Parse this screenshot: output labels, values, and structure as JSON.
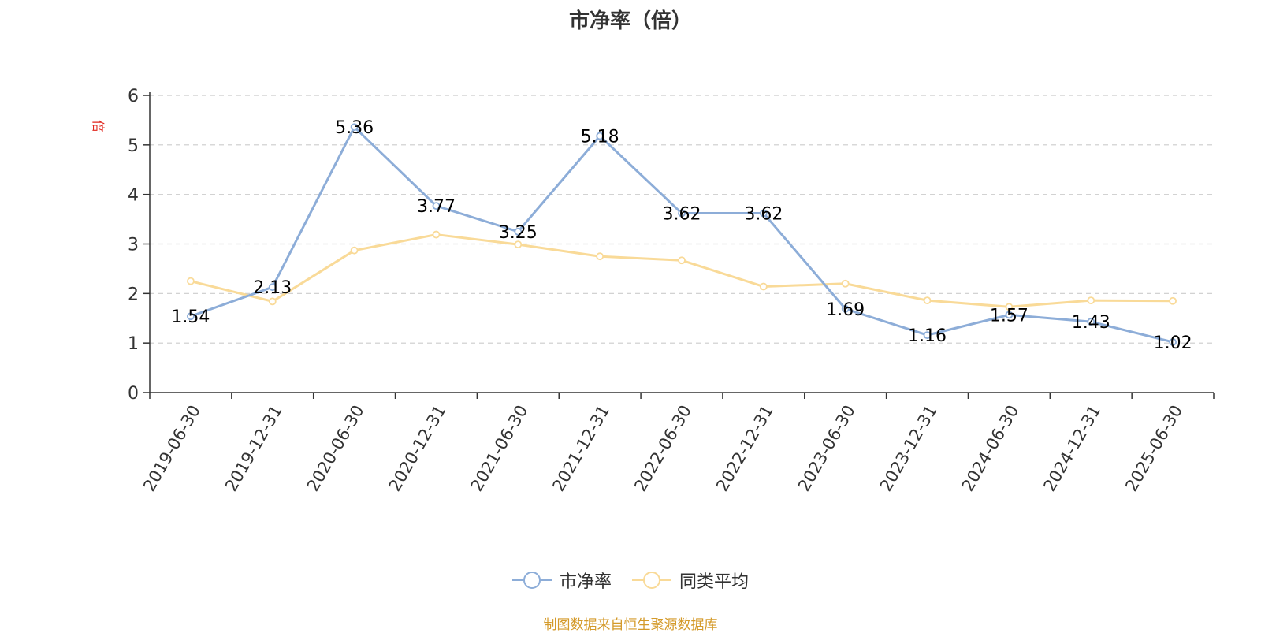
{
  "chart_data": {
    "type": "line",
    "title": "市净率（倍）",
    "ylabel": "倍",
    "ylim": [
      0,
      6
    ],
    "yticks": [
      0,
      1,
      2,
      3,
      4,
      5,
      6
    ],
    "grid": true,
    "legend_position": "bottom-center",
    "categories": [
      "2019-06-30",
      "2019-12-31",
      "2020-06-30",
      "2020-12-31",
      "2021-06-30",
      "2021-12-31",
      "2022-06-30",
      "2022-12-31",
      "2023-06-30",
      "2023-12-31",
      "2024-06-30",
      "2024-12-31",
      "2025-06-30"
    ],
    "series": [
      {
        "name": "市净率",
        "color": "#8dadd8",
        "show_labels": true,
        "values": [
          1.54,
          2.13,
          5.36,
          3.77,
          3.25,
          5.18,
          3.62,
          3.62,
          1.69,
          1.16,
          1.57,
          1.43,
          1.02
        ],
        "labels": [
          "1.54",
          "2.13",
          "5.36",
          "3.77",
          "3.25",
          "5.18",
          "3.62",
          "3.62",
          "1.69",
          "1.16",
          "1.57",
          "1.43",
          "1.02"
        ]
      },
      {
        "name": "同类平均",
        "color": "#f9da98",
        "show_labels": false,
        "values": [
          2.25,
          1.84,
          2.87,
          3.19,
          2.99,
          2.75,
          2.67,
          2.14,
          2.2,
          1.86,
          1.73,
          1.86,
          1.85
        ]
      }
    ],
    "source": "制图数据来自恒生聚源数据库"
  }
}
